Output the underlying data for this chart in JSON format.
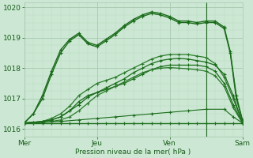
{
  "xlabel": "Pression niveau de la mer( hPa )",
  "ylim": [
    1015.75,
    1020.15
  ],
  "xlim": [
    0,
    72
  ],
  "yticks": [
    1016,
    1017,
    1018,
    1019,
    1020
  ],
  "xtick_positions": [
    0,
    24,
    48,
    72
  ],
  "xtick_labels": [
    "Mer",
    "Jeu",
    "Ven",
    "Sam"
  ],
  "bg_color": "#cce8d4",
  "grid_color_major": "#a8c8b0",
  "grid_color_minor": "#b8d8c0",
  "marker": "+",
  "figsize": [
    3.2,
    2.0
  ],
  "dpi": 100,
  "series": [
    {
      "x": [
        0,
        3,
        6,
        9,
        12,
        15,
        18,
        21,
        24,
        27,
        30,
        33,
        36,
        39,
        42,
        45,
        48,
        51,
        54,
        57,
        60,
        63,
        66,
        69,
        72
      ],
      "y": [
        1016.2,
        1016.2,
        1016.2,
        1016.2,
        1016.2,
        1016.2,
        1016.2,
        1016.2,
        1016.2,
        1016.2,
        1016.2,
        1016.2,
        1016.2,
        1016.2,
        1016.2,
        1016.2,
        1016.2,
        1016.2,
        1016.2,
        1016.2,
        1016.2,
        1016.2,
        1016.2,
        1016.2,
        1016.2
      ],
      "lw": 1.0,
      "color": "#1a6b1a",
      "msize": 2.5
    },
    {
      "x": [
        0,
        3,
        6,
        9,
        12,
        15,
        18,
        21,
        24,
        27,
        30,
        33,
        36,
        39,
        42,
        45,
        48,
        51,
        54,
        57,
        60,
        63,
        66,
        69,
        72
      ],
      "y": [
        1016.2,
        1016.22,
        1016.25,
        1016.3,
        1016.4,
        1016.6,
        1016.9,
        1017.1,
        1017.2,
        1017.3,
        1017.4,
        1017.5,
        1017.65,
        1017.8,
        1017.95,
        1018.05,
        1018.1,
        1018.1,
        1018.1,
        1018.1,
        1018.05,
        1017.9,
        1017.5,
        1016.8,
        1016.2
      ],
      "lw": 0.9,
      "color": "#1a6b1a",
      "msize": 2.5
    },
    {
      "x": [
        0,
        3,
        6,
        9,
        12,
        15,
        18,
        21,
        24,
        27,
        30,
        33,
        36,
        39,
        42,
        45,
        48,
        51,
        54,
        57,
        60,
        63,
        66,
        69,
        72
      ],
      "y": [
        1016.2,
        1016.22,
        1016.25,
        1016.35,
        1016.5,
        1016.75,
        1017.1,
        1017.3,
        1017.5,
        1017.6,
        1017.7,
        1017.85,
        1018.0,
        1018.15,
        1018.3,
        1018.4,
        1018.45,
        1018.45,
        1018.45,
        1018.4,
        1018.35,
        1018.15,
        1017.7,
        1017.0,
        1016.2
      ],
      "lw": 0.9,
      "color": "#2a7a2a",
      "msize": 2.5
    },
    {
      "x": [
        0,
        3,
        6,
        9,
        12,
        15,
        18,
        21,
        24,
        27,
        30,
        33,
        36,
        39,
        42,
        45,
        48,
        51,
        54,
        57,
        60,
        63,
        66,
        69,
        72
      ],
      "y": [
        1016.2,
        1016.22,
        1016.25,
        1016.3,
        1016.4,
        1016.6,
        1016.8,
        1017.05,
        1017.2,
        1017.35,
        1017.5,
        1017.65,
        1017.85,
        1018.0,
        1018.15,
        1018.25,
        1018.3,
        1018.32,
        1018.3,
        1018.25,
        1018.2,
        1018.1,
        1017.8,
        1017.1,
        1016.2
      ],
      "lw": 0.9,
      "color": "#1a6b1a",
      "msize": 2.5
    },
    {
      "x": [
        0,
        3,
        6,
        9,
        12,
        15,
        18,
        21,
        24,
        27,
        30,
        33,
        36,
        39,
        42,
        45,
        48,
        51,
        54,
        57,
        60,
        63,
        66,
        68,
        70,
        72
      ],
      "y": [
        1016.2,
        1016.5,
        1017.0,
        1017.8,
        1018.5,
        1018.9,
        1019.1,
        1018.8,
        1018.7,
        1018.9,
        1019.1,
        1019.35,
        1019.55,
        1019.7,
        1019.8,
        1019.75,
        1019.65,
        1019.5,
        1019.5,
        1019.45,
        1019.5,
        1019.5,
        1019.3,
        1018.5,
        1017.0,
        1016.3
      ],
      "lw": 1.0,
      "color": "#1a6b1a",
      "msize": 3.0
    },
    {
      "x": [
        0,
        3,
        6,
        9,
        12,
        15,
        18,
        21,
        24,
        27,
        30,
        33,
        36,
        39,
        42,
        45,
        48,
        51,
        54,
        57,
        60,
        63,
        66,
        68,
        70,
        72
      ],
      "y": [
        1016.2,
        1016.5,
        1017.1,
        1017.9,
        1018.6,
        1018.95,
        1019.15,
        1018.85,
        1018.75,
        1018.95,
        1019.15,
        1019.4,
        1019.6,
        1019.75,
        1019.85,
        1019.8,
        1019.7,
        1019.55,
        1019.55,
        1019.5,
        1019.55,
        1019.55,
        1019.35,
        1018.55,
        1017.1,
        1016.3
      ],
      "lw": 1.0,
      "color": "#1a6b1a",
      "msize": 3.0
    },
    {
      "x": [
        0,
        3,
        6,
        9,
        12,
        15,
        18,
        21,
        24,
        27,
        30,
        33,
        36,
        39,
        42,
        45,
        48,
        51,
        54,
        57,
        60,
        63,
        66,
        69,
        72
      ],
      "y": [
        1016.2,
        1016.2,
        1016.22,
        1016.25,
        1016.3,
        1016.4,
        1016.6,
        1016.85,
        1017.1,
        1017.25,
        1017.4,
        1017.55,
        1017.7,
        1017.85,
        1017.95,
        1018.0,
        1018.02,
        1018.0,
        1017.98,
        1017.95,
        1017.9,
        1017.75,
        1017.4,
        1016.7,
        1016.2
      ],
      "lw": 0.9,
      "color": "#2a7a2a",
      "msize": 2.5
    },
    {
      "x": [
        0,
        6,
        12,
        18,
        24,
        30,
        36,
        42,
        48,
        54,
        60,
        66,
        69,
        72
      ],
      "y": [
        1016.2,
        1016.22,
        1016.25,
        1016.3,
        1016.35,
        1016.4,
        1016.45,
        1016.5,
        1016.55,
        1016.6,
        1016.65,
        1016.65,
        1016.4,
        1016.2
      ],
      "lw": 0.8,
      "color": "#1a6b1a",
      "msize": 2.5
    }
  ],
  "vline_x": 60,
  "vline_color": "#226622"
}
